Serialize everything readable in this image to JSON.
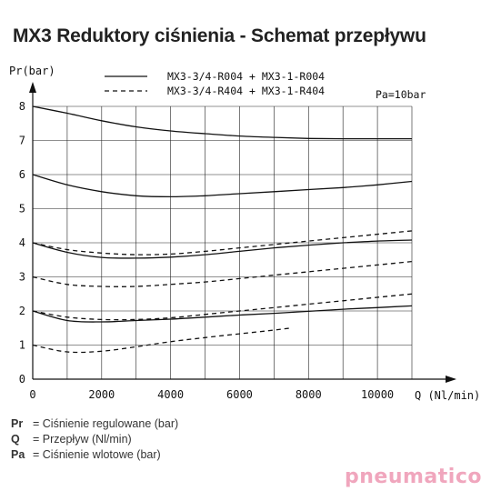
{
  "page": {
    "title": "MX3 Reduktory ciśnienia - Schemat przepływu"
  },
  "legend_desc": [
    {
      "sym": "Pr",
      "text": "= Ciśnienie regulowane (bar)"
    },
    {
      "sym": "Q",
      "text": "= Przepływ (Nl/min)"
    },
    {
      "sym": "Pa",
      "text": "= Ciśnienie wlotowe (bar)"
    }
  ],
  "brand": {
    "text": "pneumatico"
  },
  "chart_data": {
    "type": "line",
    "ylabel": "Pr(bar)",
    "xlabel": "Q (Nl/min)",
    "xlim": [
      0,
      11000
    ],
    "ylim": [
      0,
      8
    ],
    "x_ticks": [
      "0",
      "2000",
      "4000",
      "6000",
      "8000",
      "10000"
    ],
    "y_ticks": [
      "0",
      "1",
      "2",
      "3",
      "4",
      "5",
      "6",
      "7",
      "8"
    ],
    "grid": true,
    "legend_position": "top",
    "annotation": "Pa=10bar",
    "colors": {
      "line": "#111111",
      "grid": "#222222"
    },
    "series": [
      {
        "name": "MX3-3/4-R004 + MX3-1-R004",
        "style": "solid",
        "group": "solid-8",
        "points": [
          [
            0,
            8.0
          ],
          [
            1000,
            7.8
          ],
          [
            2000,
            7.58
          ],
          [
            3000,
            7.4
          ],
          [
            4000,
            7.28
          ],
          [
            5000,
            7.2
          ],
          [
            6000,
            7.13
          ],
          [
            7000,
            7.09
          ],
          [
            8000,
            7.06
          ],
          [
            9000,
            7.05
          ],
          [
            10000,
            7.05
          ],
          [
            11000,
            7.05
          ]
        ]
      },
      {
        "name": "",
        "style": "solid",
        "group": "solid-6",
        "points": [
          [
            0,
            6.0
          ],
          [
            1000,
            5.7
          ],
          [
            2000,
            5.5
          ],
          [
            3000,
            5.38
          ],
          [
            4000,
            5.35
          ],
          [
            5000,
            5.38
          ],
          [
            6000,
            5.44
          ],
          [
            7000,
            5.5
          ],
          [
            8000,
            5.56
          ],
          [
            9000,
            5.62
          ],
          [
            10000,
            5.7
          ],
          [
            11000,
            5.8
          ]
        ]
      },
      {
        "name": "",
        "style": "solid",
        "group": "solid-4",
        "points": [
          [
            0,
            4.0
          ],
          [
            1000,
            3.72
          ],
          [
            2000,
            3.57
          ],
          [
            3000,
            3.55
          ],
          [
            4000,
            3.58
          ],
          [
            5000,
            3.65
          ],
          [
            6000,
            3.75
          ],
          [
            7000,
            3.85
          ],
          [
            8000,
            3.93
          ],
          [
            9000,
            4.0
          ],
          [
            10000,
            4.05
          ],
          [
            11000,
            4.08
          ]
        ]
      },
      {
        "name": "",
        "style": "solid",
        "group": "solid-2",
        "points": [
          [
            0,
            2.0
          ],
          [
            1000,
            1.72
          ],
          [
            2000,
            1.68
          ],
          [
            3000,
            1.72
          ],
          [
            4000,
            1.76
          ],
          [
            5000,
            1.82
          ],
          [
            6000,
            1.88
          ],
          [
            7000,
            1.93
          ],
          [
            8000,
            1.99
          ],
          [
            9000,
            2.05
          ],
          [
            10000,
            2.1
          ],
          [
            11000,
            2.15
          ]
        ]
      },
      {
        "name": "MX3-3/4-R404 + MX3-1-R404",
        "style": "dashed",
        "group": "dashed-4",
        "points": [
          [
            0,
            4.0
          ],
          [
            1000,
            3.8
          ],
          [
            2000,
            3.7
          ],
          [
            3000,
            3.65
          ],
          [
            4000,
            3.67
          ],
          [
            5000,
            3.75
          ],
          [
            6000,
            3.85
          ],
          [
            7000,
            3.95
          ],
          [
            8000,
            4.05
          ],
          [
            9000,
            4.15
          ],
          [
            10000,
            4.25
          ],
          [
            11000,
            4.35
          ]
        ]
      },
      {
        "name": "",
        "style": "dashed",
        "group": "dashed-3",
        "points": [
          [
            0,
            3.0
          ],
          [
            1000,
            2.78
          ],
          [
            2000,
            2.72
          ],
          [
            3000,
            2.72
          ],
          [
            4000,
            2.78
          ],
          [
            5000,
            2.85
          ],
          [
            6000,
            2.95
          ],
          [
            7000,
            3.05
          ],
          [
            8000,
            3.15
          ],
          [
            9000,
            3.25
          ],
          [
            10000,
            3.35
          ],
          [
            11000,
            3.45
          ]
        ]
      },
      {
        "name": "",
        "style": "dashed",
        "group": "dashed-2",
        "points": [
          [
            0,
            2.0
          ],
          [
            1000,
            1.82
          ],
          [
            2000,
            1.75
          ],
          [
            3000,
            1.75
          ],
          [
            4000,
            1.8
          ],
          [
            5000,
            1.9
          ],
          [
            6000,
            2.0
          ],
          [
            7000,
            2.1
          ],
          [
            8000,
            2.2
          ],
          [
            9000,
            2.3
          ],
          [
            10000,
            2.4
          ],
          [
            11000,
            2.5
          ]
        ]
      },
      {
        "name": "",
        "style": "dashed",
        "group": "dashed-1",
        "points": [
          [
            0,
            1.0
          ],
          [
            1000,
            0.8
          ],
          [
            2000,
            0.82
          ],
          [
            3000,
            0.95
          ],
          [
            4000,
            1.1
          ],
          [
            5000,
            1.22
          ],
          [
            6000,
            1.33
          ],
          [
            7000,
            1.44
          ],
          [
            7500,
            1.5
          ]
        ]
      }
    ],
    "legend_entries": [
      {
        "label": "MX3-3/4-R004 + MX3-1-R004",
        "style": "solid"
      },
      {
        "label": "MX3-3/4-R404 + MX3-1-R404",
        "style": "dashed"
      }
    ]
  }
}
